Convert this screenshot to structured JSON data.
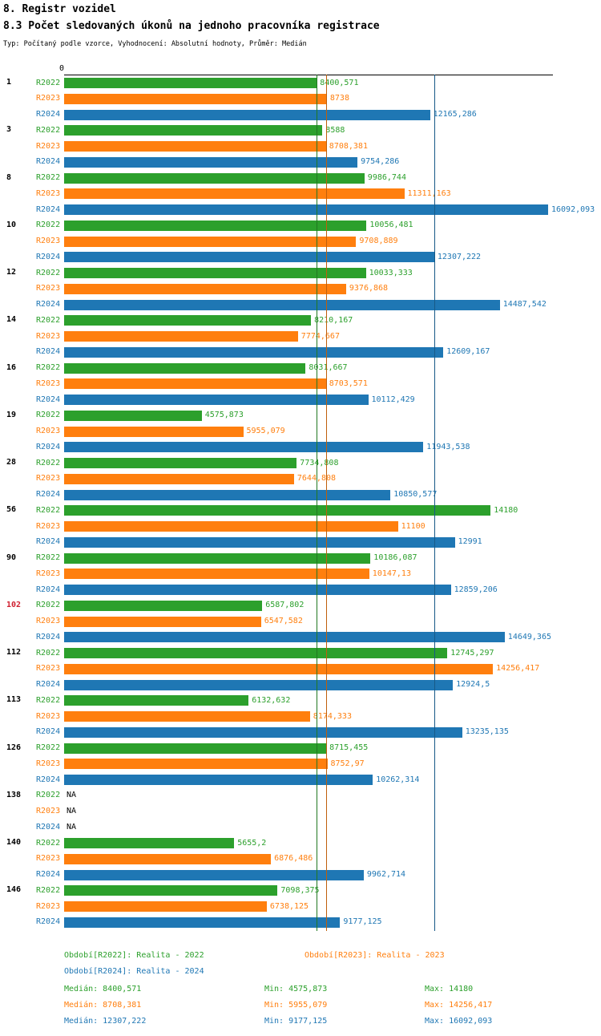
{
  "header": {
    "title": "8. Registr vozidel",
    "subtitle": "8.3 Počet sledovaných úkonů na jednoho pracovníka registrace",
    "meta": "Typ: Počítaný podle vzorce, Vyhodnocení: Absolutní hodnoty, Průměr: Medián"
  },
  "chart_data": {
    "type": "bar",
    "orientation": "horizontal",
    "title": "8.3 Počet sledovaných úkonů na jednoho pracovníka registrace",
    "x_axis": {
      "origin_label": "0",
      "xmax": 16200,
      "grid": false
    },
    "series_names": [
      "R2022",
      "R2023",
      "R2024"
    ],
    "colors": {
      "R2022": "#2ca02c",
      "R2023": "#ff7f0e",
      "R2024": "#1f77b4",
      "highlight": "#d02030"
    },
    "groups": [
      {
        "label": "1",
        "highlight": false,
        "bars": [
          {
            "series": "R2022",
            "value": 8400.571,
            "label": "8400,571"
          },
          {
            "series": "R2023",
            "value": 8738,
            "label": "8738"
          },
          {
            "series": "R2024",
            "value": 12165.286,
            "label": "12165,286"
          }
        ]
      },
      {
        "label": "3",
        "highlight": false,
        "bars": [
          {
            "series": "R2022",
            "value": 8588,
            "label": "8588"
          },
          {
            "series": "R2023",
            "value": 8708.381,
            "label": "8708,381"
          },
          {
            "series": "R2024",
            "value": 9754.286,
            "label": "9754,286"
          }
        ]
      },
      {
        "label": "8",
        "highlight": false,
        "bars": [
          {
            "series": "R2022",
            "value": 9986.744,
            "label": "9986,744"
          },
          {
            "series": "R2023",
            "value": 11311.163,
            "label": "11311,163"
          },
          {
            "series": "R2024",
            "value": 16092.093,
            "label": "16092,093"
          }
        ]
      },
      {
        "label": "10",
        "highlight": false,
        "bars": [
          {
            "series": "R2022",
            "value": 10056.481,
            "label": "10056,481"
          },
          {
            "series": "R2023",
            "value": 9708.889,
            "label": "9708,889"
          },
          {
            "series": "R2024",
            "value": 12307.222,
            "label": "12307,222"
          }
        ]
      },
      {
        "label": "12",
        "highlight": false,
        "bars": [
          {
            "series": "R2022",
            "value": 10033.333,
            "label": "10033,333"
          },
          {
            "series": "R2023",
            "value": 9376.868,
            "label": "9376,868"
          },
          {
            "series": "R2024",
            "value": 14487.542,
            "label": "14487,542"
          }
        ]
      },
      {
        "label": "14",
        "highlight": false,
        "bars": [
          {
            "series": "R2022",
            "value": 8210.167,
            "label": "8210,167"
          },
          {
            "series": "R2023",
            "value": 7774.667,
            "label": "7774,667"
          },
          {
            "series": "R2024",
            "value": 12609.167,
            "label": "12609,167"
          }
        ]
      },
      {
        "label": "16",
        "highlight": false,
        "bars": [
          {
            "series": "R2022",
            "value": 8031.667,
            "label": "8031,667"
          },
          {
            "series": "R2023",
            "value": 8703.571,
            "label": "8703,571"
          },
          {
            "series": "R2024",
            "value": 10112.429,
            "label": "10112,429"
          }
        ]
      },
      {
        "label": "19",
        "highlight": false,
        "bars": [
          {
            "series": "R2022",
            "value": 4575.873,
            "label": "4575,873"
          },
          {
            "series": "R2023",
            "value": 5955.079,
            "label": "5955,079"
          },
          {
            "series": "R2024",
            "value": 11943.538,
            "label": "11943,538"
          }
        ]
      },
      {
        "label": "28",
        "highlight": false,
        "bars": [
          {
            "series": "R2022",
            "value": 7734.808,
            "label": "7734,808"
          },
          {
            "series": "R2023",
            "value": 7644.808,
            "label": "7644,808"
          },
          {
            "series": "R2024",
            "value": 10850.577,
            "label": "10850,577"
          }
        ]
      },
      {
        "label": "56",
        "highlight": false,
        "bars": [
          {
            "series": "R2022",
            "value": 14180,
            "label": "14180"
          },
          {
            "series": "R2023",
            "value": 11100,
            "label": "11100"
          },
          {
            "series": "R2024",
            "value": 12991,
            "label": "12991"
          }
        ]
      },
      {
        "label": "90",
        "highlight": false,
        "bars": [
          {
            "series": "R2022",
            "value": 10186.087,
            "label": "10186,087"
          },
          {
            "series": "R2023",
            "value": 10147.13,
            "label": "10147,13"
          },
          {
            "series": "R2024",
            "value": 12859.206,
            "label": "12859,206"
          }
        ]
      },
      {
        "label": "102",
        "highlight": true,
        "bars": [
          {
            "series": "R2022",
            "value": 6587.802,
            "label": "6587,802"
          },
          {
            "series": "R2023",
            "value": 6547.582,
            "label": "6547,582"
          },
          {
            "series": "R2024",
            "value": 14649.365,
            "label": "14649,365"
          }
        ]
      },
      {
        "label": "112",
        "highlight": false,
        "bars": [
          {
            "series": "R2022",
            "value": 12745.297,
            "label": "12745,297"
          },
          {
            "series": "R2023",
            "value": 14256.417,
            "label": "14256,417"
          },
          {
            "series": "R2024",
            "value": 12924.5,
            "label": "12924,5"
          }
        ]
      },
      {
        "label": "113",
        "highlight": false,
        "bars": [
          {
            "series": "R2022",
            "value": 6132.632,
            "label": "6132,632"
          },
          {
            "series": "R2023",
            "value": 8174.333,
            "label": "8174,333"
          },
          {
            "series": "R2024",
            "value": 13235.135,
            "label": "13235,135"
          }
        ]
      },
      {
        "label": "126",
        "highlight": false,
        "bars": [
          {
            "series": "R2022",
            "value": 8715.455,
            "label": "8715,455"
          },
          {
            "series": "R2023",
            "value": 8752.97,
            "label": "8752,97"
          },
          {
            "series": "R2024",
            "value": 10262.314,
            "label": "10262,314"
          }
        ]
      },
      {
        "label": "138",
        "highlight": false,
        "bars": [
          {
            "series": "R2022",
            "value": null,
            "label": "NA"
          },
          {
            "series": "R2023",
            "value": null,
            "label": "NA"
          },
          {
            "series": "R2024",
            "value": null,
            "label": "NA"
          }
        ]
      },
      {
        "label": "140",
        "highlight": false,
        "bars": [
          {
            "series": "R2022",
            "value": 5655.2,
            "label": "5655,2"
          },
          {
            "series": "R2023",
            "value": 6876.486,
            "label": "6876,486"
          },
          {
            "series": "R2024",
            "value": 9962.714,
            "label": "9962,714"
          }
        ]
      },
      {
        "label": "146",
        "highlight": false,
        "bars": [
          {
            "series": "R2022",
            "value": 7098.375,
            "label": "7098,375"
          },
          {
            "series": "R2023",
            "value": 6738.125,
            "label": "6738,125"
          },
          {
            "series": "R2024",
            "value": 9177.125,
            "label": "9177,125"
          }
        ]
      }
    ],
    "medians": [
      {
        "series": "R2022",
        "value": 8400.571
      },
      {
        "series": "R2023",
        "value": 8708.381
      },
      {
        "series": "R2024",
        "value": 12307.222
      }
    ],
    "legend": [
      {
        "series": "R2022",
        "label": "Období[R2022]: Realita - 2022"
      },
      {
        "series": "R2023",
        "label": "Období[R2023]: Realita - 2023"
      },
      {
        "series": "R2024",
        "label": "Období[R2024]: Realita - 2024"
      }
    ],
    "stats": [
      {
        "series": "R2022",
        "median": "Medián: 8400,571",
        "min": "Min: 4575,873",
        "max": "Max: 14180"
      },
      {
        "series": "R2023",
        "median": "Medián: 8708,381",
        "min": "Min: 5955,079",
        "max": "Max: 14256,417"
      },
      {
        "series": "R2024",
        "median": "Medián: 12307,222",
        "min": "Min: 9177,125",
        "max": "Max: 16092,093"
      }
    ]
  }
}
